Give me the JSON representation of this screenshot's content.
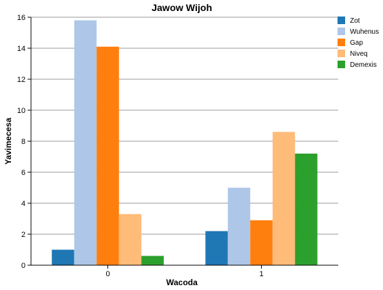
{
  "chart_data": {
    "type": "bar",
    "title": "Jawow Wijoh",
    "xlabel": "Wacoda",
    "ylabel": "Yavimecesa",
    "categories": [
      "0",
      "1"
    ],
    "ylim": [
      0,
      16
    ],
    "yticks": [
      0,
      2,
      4,
      6,
      8,
      10,
      12,
      14,
      16
    ],
    "grid": true,
    "legend_position": "top-right",
    "series": [
      {
        "name": "Zot",
        "color": "#1f77b4",
        "values": [
          1.0,
          2.2
        ]
      },
      {
        "name": "Wuhenus",
        "color": "#aec7e8",
        "values": [
          15.8,
          5.0
        ]
      },
      {
        "name": "Gap",
        "color": "#ff7f0e",
        "values": [
          14.1,
          2.9
        ]
      },
      {
        "name": "Niveq",
        "color": "#ffbb78",
        "values": [
          3.3,
          8.6
        ]
      },
      {
        "name": "Demexis",
        "color": "#2ca02c",
        "values": [
          0.6,
          7.2
        ]
      }
    ]
  }
}
